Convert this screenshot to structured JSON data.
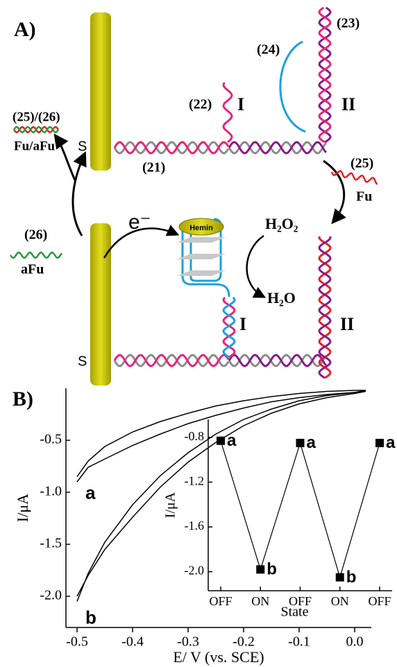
{
  "panel_a": {
    "label": "A)",
    "strand_21": "(21)",
    "strand_22": "(22)",
    "strand_23": "(23)",
    "strand_24": "(24)",
    "segment_i_top": "I",
    "segment_ii_top": "II",
    "sulfur_top": "S",
    "duplex_25_26": "(25)/(26)",
    "duplex_fu_afu": "Fu/aFu",
    "strand_25": "(25)",
    "strand_25_name": "Fu",
    "strand_26": "(26)",
    "strand_26_name": "aFu",
    "electron": "e⁻",
    "hemin": "Hemin",
    "h2o2": "H₂O₂",
    "h2o": "H₂O",
    "segment_i_bottom": "I",
    "segment_ii_bottom": "II",
    "sulfur_bottom": "S"
  },
  "panel_b_label": "B)",
  "chart_data": [
    {
      "type": "line",
      "x_label": "E/ V (vs. SCE)",
      "y_label": "I/μA",
      "x": [
        -0.5,
        -0.48,
        -0.45,
        -0.4,
        -0.35,
        -0.3,
        -0.25,
        -0.2,
        -0.15,
        -0.1,
        -0.05,
        0,
        0.02,
        0,
        -0.05,
        -0.1,
        -0.15,
        -0.2,
        -0.25,
        -0.3,
        -0.35,
        -0.4,
        -0.45,
        -0.48,
        -0.5
      ],
      "series": [
        {
          "name": "a",
          "color": "#000000",
          "values": [
            -0.85,
            -0.7,
            -0.56,
            -0.42,
            -0.32,
            -0.24,
            -0.17,
            -0.12,
            -0.08,
            -0.05,
            -0.03,
            -0.02,
            -0.02,
            -0.04,
            -0.06,
            -0.09,
            -0.13,
            -0.19,
            -0.26,
            -0.34,
            -0.44,
            -0.55,
            -0.68,
            -0.76,
            -0.9
          ]
        },
        {
          "name": "b",
          "color": "#000000",
          "values": [
            -2.05,
            -1.78,
            -1.48,
            -1.12,
            -0.84,
            -0.62,
            -0.44,
            -0.3,
            -0.2,
            -0.12,
            -0.07,
            -0.04,
            -0.03,
            -0.05,
            -0.09,
            -0.15,
            -0.24,
            -0.36,
            -0.52,
            -0.71,
            -0.95,
            -1.24,
            -1.55,
            -1.8,
            -2.0
          ]
        }
      ],
      "xlim": [
        -0.52,
        0.03
      ],
      "xticks": [
        -0.5,
        -0.4,
        -0.3,
        -0.2,
        -0.1,
        {
          "value": 0,
          "label": "0.0"
        }
      ],
      "ylim": [
        -2.3,
        0
      ],
      "yticks": [
        -0.5,
        {
          "value": -1.0,
          "label": "-1.0"
        },
        -1.5,
        {
          "value": -2.0,
          "label": "-2.0"
        }
      ]
    },
    {
      "type": "line",
      "x_label": "State",
      "y_label": "I/μA",
      "categories": [
        "OFF",
        "ON",
        "OFF",
        "ON",
        "OFF"
      ],
      "values": [
        -0.83,
        -1.98,
        -0.85,
        -2.05,
        -0.85
      ],
      "point_labels": [
        "a",
        "b",
        "a",
        "b",
        "a"
      ],
      "color": "#000000",
      "ylim": [
        -2.17,
        -0.64
      ],
      "yticks": [
        -0.8,
        -1.2,
        -1.6,
        {
          "value": -2.0,
          "label": "-2.0"
        }
      ]
    }
  ]
}
